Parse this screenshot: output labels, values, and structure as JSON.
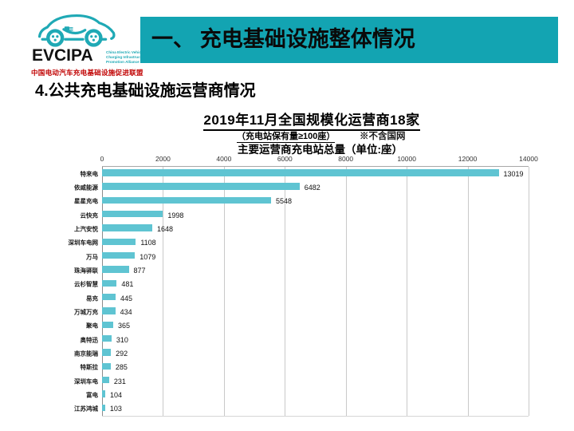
{
  "logo": {
    "acronym": "EVCIPA",
    "english_name": "China Electric Vehicle Charging Infrastructure Promotion Alliance",
    "chinese_name": "中国电动汽车充电基础设施促进联盟"
  },
  "header": {
    "title": "一、 充电基础设施整体情况"
  },
  "section": {
    "title": "4.公共充电基础设施运营商情况"
  },
  "colors": {
    "header_teal": "#13A4B2",
    "bar_teal": "#5FC4D2",
    "logo_teal": "#1FA9B5",
    "logo_red": "#C00000",
    "gridline_gray": "#C9C9C9"
  },
  "chart_data": {
    "type": "bar",
    "orientation": "horizontal",
    "title": "2019年11月全国规模化运营商18家",
    "subtitle": "（充电站保有量≥100座）",
    "note": "※不含国网",
    "axis_title": "主要运营商充电站总量（单位:座）",
    "unit": "座",
    "xlim": [
      0,
      14000
    ],
    "xticks": [
      0,
      2000,
      4000,
      6000,
      8000,
      10000,
      12000,
      14000
    ],
    "grid": true,
    "legend": "none",
    "categories": [
      "特来电",
      "依威能源",
      "星星充电",
      "云快充",
      "上汽安悦",
      "深圳车电网",
      "万马",
      "珠海驿联",
      "云杉智慧",
      "易充",
      "万城万充",
      "聚电",
      "奥特迅",
      "南京能瑞",
      "特斯拉",
      "深圳车电",
      "富电",
      "江苏鸿城"
    ],
    "values": [
      13019,
      6482,
      5548,
      1998,
      1648,
      1108,
      1079,
      877,
      481,
      445,
      434,
      365,
      310,
      292,
      285,
      231,
      104,
      103
    ]
  }
}
